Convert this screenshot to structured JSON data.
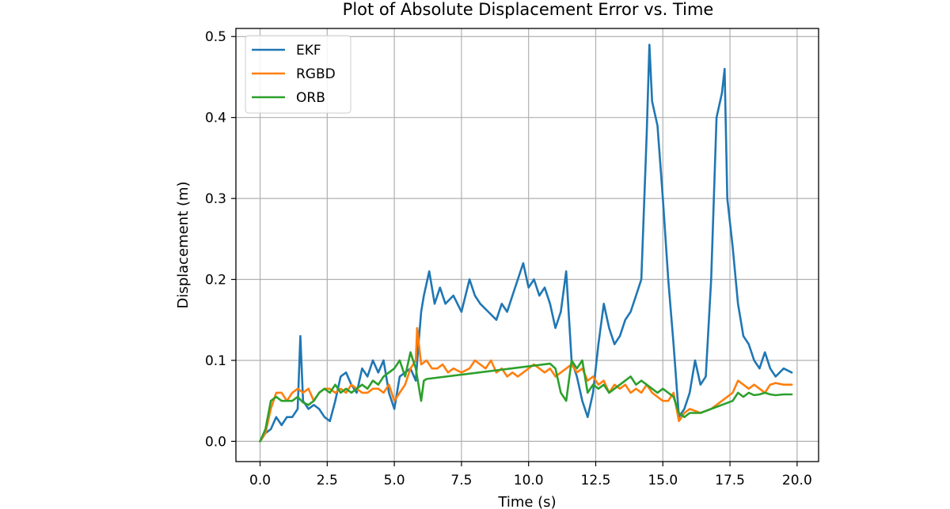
{
  "chart_data": {
    "type": "line",
    "title": "Plot of Absolute Displacement Error vs. Time",
    "xlabel": "Time (s)",
    "ylabel": "Displacement (m)",
    "xlim": [
      -0.9,
      20.8
    ],
    "ylim": [
      -0.025,
      0.51
    ],
    "xticks": [
      0.0,
      2.5,
      5.0,
      7.5,
      10.0,
      12.5,
      15.0,
      17.5,
      20.0
    ],
    "xtick_labels": [
      "0.0",
      "2.5",
      "5.0",
      "7.5",
      "10.0",
      "12.5",
      "15.0",
      "17.5",
      "20.0"
    ],
    "yticks": [
      0.0,
      0.1,
      0.2,
      0.3,
      0.4,
      0.5
    ],
    "ytick_labels": [
      "0.0",
      "0.1",
      "0.2",
      "0.3",
      "0.4",
      "0.5"
    ],
    "grid": true,
    "legend": "top-left",
    "series": [
      {
        "name": "EKF",
        "color": "#1f77b4",
        "points": [
          [
            0.0,
            0.0
          ],
          [
            0.2,
            0.01
          ],
          [
            0.4,
            0.015
          ],
          [
            0.6,
            0.03
          ],
          [
            0.8,
            0.02
          ],
          [
            1.0,
            0.03
          ],
          [
            1.2,
            0.03
          ],
          [
            1.4,
            0.04
          ],
          [
            1.5,
            0.13
          ],
          [
            1.6,
            0.05
          ],
          [
            1.8,
            0.04
          ],
          [
            2.0,
            0.045
          ],
          [
            2.2,
            0.04
          ],
          [
            2.4,
            0.03
          ],
          [
            2.6,
            0.025
          ],
          [
            2.8,
            0.05
          ],
          [
            3.0,
            0.08
          ],
          [
            3.2,
            0.085
          ],
          [
            3.4,
            0.07
          ],
          [
            3.6,
            0.06
          ],
          [
            3.8,
            0.09
          ],
          [
            4.0,
            0.08
          ],
          [
            4.2,
            0.1
          ],
          [
            4.4,
            0.085
          ],
          [
            4.6,
            0.1
          ],
          [
            4.8,
            0.06
          ],
          [
            5.0,
            0.04
          ],
          [
            5.2,
            0.08
          ],
          [
            5.4,
            0.085
          ],
          [
            5.6,
            0.09
          ],
          [
            5.8,
            0.075
          ],
          [
            5.9,
            0.12
          ],
          [
            6.0,
            0.16
          ],
          [
            6.1,
            0.18
          ],
          [
            6.3,
            0.21
          ],
          [
            6.5,
            0.17
          ],
          [
            6.7,
            0.19
          ],
          [
            6.9,
            0.17
          ],
          [
            7.2,
            0.18
          ],
          [
            7.5,
            0.16
          ],
          [
            7.8,
            0.2
          ],
          [
            8.0,
            0.18
          ],
          [
            8.2,
            0.17
          ],
          [
            8.5,
            0.16
          ],
          [
            8.8,
            0.15
          ],
          [
            9.0,
            0.17
          ],
          [
            9.2,
            0.16
          ],
          [
            9.4,
            0.18
          ],
          [
            9.6,
            0.2
          ],
          [
            9.8,
            0.22
          ],
          [
            10.0,
            0.19
          ],
          [
            10.2,
            0.2
          ],
          [
            10.4,
            0.18
          ],
          [
            10.6,
            0.19
          ],
          [
            10.8,
            0.17
          ],
          [
            11.0,
            0.14
          ],
          [
            11.2,
            0.16
          ],
          [
            11.4,
            0.21
          ],
          [
            11.6,
            0.1
          ],
          [
            11.8,
            0.08
          ],
          [
            12.0,
            0.05
          ],
          [
            12.2,
            0.03
          ],
          [
            12.4,
            0.06
          ],
          [
            12.6,
            0.12
          ],
          [
            12.8,
            0.17
          ],
          [
            13.0,
            0.14
          ],
          [
            13.2,
            0.12
          ],
          [
            13.4,
            0.13
          ],
          [
            13.6,
            0.15
          ],
          [
            13.8,
            0.16
          ],
          [
            14.0,
            0.18
          ],
          [
            14.2,
            0.2
          ],
          [
            14.4,
            0.38
          ],
          [
            14.5,
            0.49
          ],
          [
            14.6,
            0.42
          ],
          [
            14.8,
            0.39
          ],
          [
            15.0,
            0.3
          ],
          [
            15.2,
            0.2
          ],
          [
            15.4,
            0.12
          ],
          [
            15.6,
            0.03
          ],
          [
            15.8,
            0.04
          ],
          [
            16.0,
            0.06
          ],
          [
            16.2,
            0.1
          ],
          [
            16.4,
            0.07
          ],
          [
            16.6,
            0.08
          ],
          [
            16.8,
            0.2
          ],
          [
            17.0,
            0.4
          ],
          [
            17.2,
            0.43
          ],
          [
            17.3,
            0.46
          ],
          [
            17.4,
            0.3
          ],
          [
            17.6,
            0.24
          ],
          [
            17.8,
            0.17
          ],
          [
            18.0,
            0.13
          ],
          [
            18.2,
            0.12
          ],
          [
            18.4,
            0.1
          ],
          [
            18.6,
            0.09
          ],
          [
            18.8,
            0.11
          ],
          [
            19.0,
            0.09
          ],
          [
            19.2,
            0.08
          ],
          [
            19.5,
            0.09
          ],
          [
            19.8,
            0.085
          ]
        ]
      },
      {
        "name": "RGBD",
        "color": "#ff7f0e",
        "points": [
          [
            0.0,
            0.0
          ],
          [
            0.2,
            0.01
          ],
          [
            0.4,
            0.04
          ],
          [
            0.6,
            0.06
          ],
          [
            0.8,
            0.06
          ],
          [
            1.0,
            0.05
          ],
          [
            1.2,
            0.06
          ],
          [
            1.4,
            0.065
          ],
          [
            1.6,
            0.06
          ],
          [
            1.8,
            0.065
          ],
          [
            2.0,
            0.05
          ],
          [
            2.2,
            0.06
          ],
          [
            2.4,
            0.065
          ],
          [
            2.6,
            0.065
          ],
          [
            2.8,
            0.06
          ],
          [
            3.0,
            0.065
          ],
          [
            3.2,
            0.06
          ],
          [
            3.4,
            0.07
          ],
          [
            3.6,
            0.065
          ],
          [
            3.8,
            0.06
          ],
          [
            4.0,
            0.06
          ],
          [
            4.2,
            0.065
          ],
          [
            4.4,
            0.065
          ],
          [
            4.6,
            0.06
          ],
          [
            4.8,
            0.07
          ],
          [
            5.0,
            0.05
          ],
          [
            5.2,
            0.06
          ],
          [
            5.4,
            0.07
          ],
          [
            5.6,
            0.09
          ],
          [
            5.8,
            0.1
          ],
          [
            5.85,
            0.14
          ],
          [
            6.0,
            0.095
          ],
          [
            6.2,
            0.1
          ],
          [
            6.4,
            0.09
          ],
          [
            6.6,
            0.09
          ],
          [
            6.8,
            0.095
          ],
          [
            7.0,
            0.085
          ],
          [
            7.2,
            0.09
          ],
          [
            7.5,
            0.085
          ],
          [
            7.8,
            0.09
          ],
          [
            8.0,
            0.1
          ],
          [
            8.2,
            0.095
          ],
          [
            8.4,
            0.09
          ],
          [
            8.6,
            0.1
          ],
          [
            8.8,
            0.085
          ],
          [
            9.0,
            0.09
          ],
          [
            9.2,
            0.08
          ],
          [
            9.4,
            0.085
          ],
          [
            9.6,
            0.08
          ],
          [
            9.8,
            0.085
          ],
          [
            10.0,
            0.09
          ],
          [
            10.2,
            0.095
          ],
          [
            10.4,
            0.09
          ],
          [
            10.6,
            0.085
          ],
          [
            10.8,
            0.09
          ],
          [
            11.0,
            0.08
          ],
          [
            11.2,
            0.085
          ],
          [
            11.4,
            0.09
          ],
          [
            11.6,
            0.095
          ],
          [
            11.8,
            0.085
          ],
          [
            12.0,
            0.09
          ],
          [
            12.2,
            0.075
          ],
          [
            12.4,
            0.08
          ],
          [
            12.6,
            0.07
          ],
          [
            12.8,
            0.075
          ],
          [
            13.0,
            0.06
          ],
          [
            13.2,
            0.07
          ],
          [
            13.4,
            0.065
          ],
          [
            13.6,
            0.07
          ],
          [
            13.8,
            0.06
          ],
          [
            14.0,
            0.065
          ],
          [
            14.2,
            0.06
          ],
          [
            14.4,
            0.07
          ],
          [
            14.6,
            0.06
          ],
          [
            14.8,
            0.055
          ],
          [
            15.0,
            0.05
          ],
          [
            15.2,
            0.05
          ],
          [
            15.4,
            0.06
          ],
          [
            15.6,
            0.025
          ],
          [
            15.8,
            0.035
          ],
          [
            16.0,
            0.04
          ],
          [
            16.4,
            0.035
          ],
          [
            16.8,
            0.04
          ],
          [
            17.2,
            0.05
          ],
          [
            17.6,
            0.06
          ],
          [
            17.8,
            0.075
          ],
          [
            18.0,
            0.07
          ],
          [
            18.2,
            0.065
          ],
          [
            18.4,
            0.07
          ],
          [
            18.6,
            0.065
          ],
          [
            18.8,
            0.06
          ],
          [
            19.0,
            0.07
          ],
          [
            19.2,
            0.072
          ],
          [
            19.5,
            0.07
          ],
          [
            19.8,
            0.07
          ]
        ]
      },
      {
        "name": "ORB",
        "color": "#2ca02c",
        "points": [
          [
            0.0,
            0.0
          ],
          [
            0.2,
            0.015
          ],
          [
            0.4,
            0.05
          ],
          [
            0.6,
            0.055
          ],
          [
            0.8,
            0.05
          ],
          [
            1.0,
            0.05
          ],
          [
            1.2,
            0.05
          ],
          [
            1.4,
            0.055
          ],
          [
            1.6,
            0.048
          ],
          [
            1.8,
            0.045
          ],
          [
            2.0,
            0.05
          ],
          [
            2.2,
            0.06
          ],
          [
            2.4,
            0.065
          ],
          [
            2.6,
            0.06
          ],
          [
            2.8,
            0.07
          ],
          [
            3.0,
            0.06
          ],
          [
            3.2,
            0.065
          ],
          [
            3.4,
            0.06
          ],
          [
            3.6,
            0.065
          ],
          [
            3.8,
            0.07
          ],
          [
            4.0,
            0.065
          ],
          [
            4.2,
            0.075
          ],
          [
            4.4,
            0.07
          ],
          [
            4.6,
            0.08
          ],
          [
            4.8,
            0.085
          ],
          [
            5.0,
            0.09
          ],
          [
            5.2,
            0.1
          ],
          [
            5.4,
            0.08
          ],
          [
            5.6,
            0.11
          ],
          [
            5.8,
            0.09
          ],
          [
            6.0,
            0.05
          ],
          [
            6.1,
            0.075
          ],
          [
            6.2,
            0.077
          ],
          [
            10.8,
            0.096
          ],
          [
            11.0,
            0.09
          ],
          [
            11.2,
            0.06
          ],
          [
            11.4,
            0.05
          ],
          [
            11.6,
            0.1
          ],
          [
            11.8,
            0.09
          ],
          [
            12.0,
            0.1
          ],
          [
            12.2,
            0.06
          ],
          [
            12.4,
            0.07
          ],
          [
            12.6,
            0.065
          ],
          [
            12.8,
            0.07
          ],
          [
            13.0,
            0.06
          ],
          [
            13.2,
            0.065
          ],
          [
            13.4,
            0.07
          ],
          [
            13.6,
            0.075
          ],
          [
            13.8,
            0.08
          ],
          [
            14.0,
            0.07
          ],
          [
            14.2,
            0.075
          ],
          [
            14.4,
            0.07
          ],
          [
            14.6,
            0.065
          ],
          [
            14.8,
            0.06
          ],
          [
            15.0,
            0.065
          ],
          [
            15.2,
            0.06
          ],
          [
            15.4,
            0.055
          ],
          [
            15.6,
            0.035
          ],
          [
            15.8,
            0.03
          ],
          [
            16.0,
            0.035
          ],
          [
            16.4,
            0.035
          ],
          [
            16.8,
            0.04
          ],
          [
            17.2,
            0.045
          ],
          [
            17.6,
            0.05
          ],
          [
            17.8,
            0.06
          ],
          [
            18.0,
            0.055
          ],
          [
            18.2,
            0.06
          ],
          [
            18.4,
            0.057
          ],
          [
            18.6,
            0.058
          ],
          [
            18.8,
            0.06
          ],
          [
            19.0,
            0.058
          ],
          [
            19.2,
            0.057
          ],
          [
            19.5,
            0.058
          ],
          [
            19.8,
            0.058
          ]
        ]
      }
    ]
  }
}
